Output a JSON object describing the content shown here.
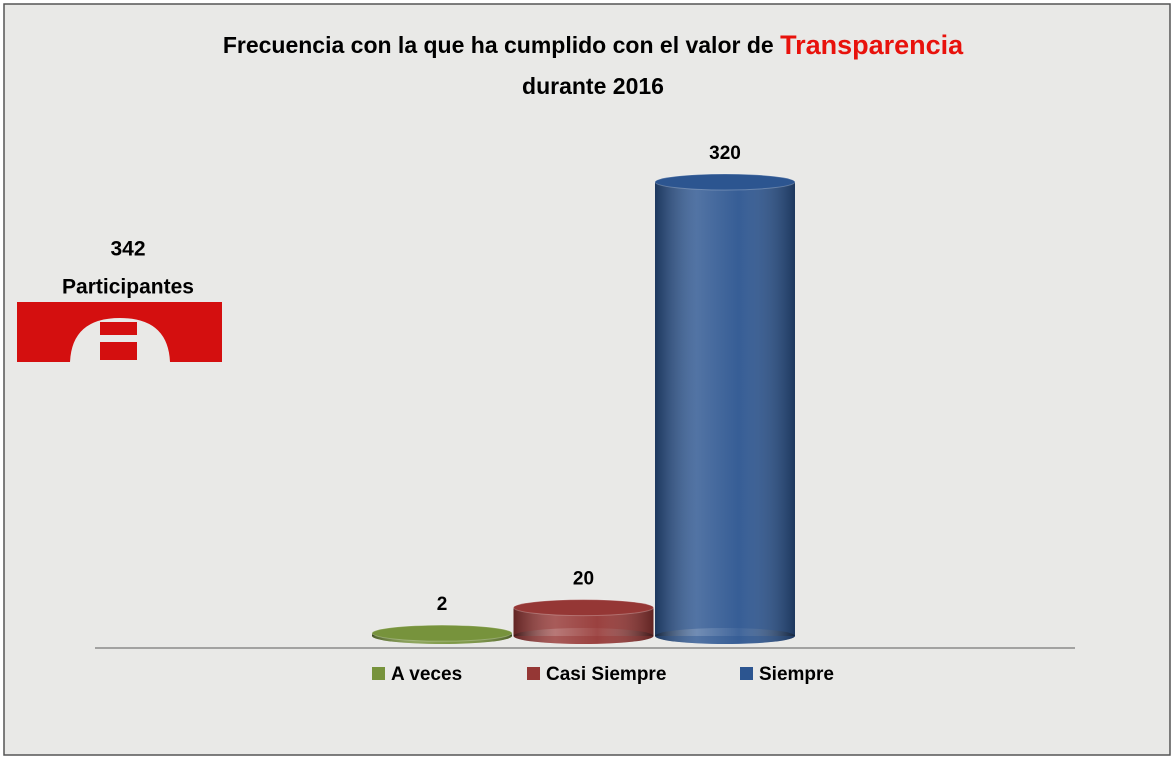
{
  "chart_data": {
    "type": "bar",
    "title": "Frecuencia con la que ha cumplido con el valor de",
    "title_highlight": "Transparencia",
    "subtitle": "durante 2016",
    "annotations": [
      "342",
      "Participantes"
    ],
    "categories": [
      null
    ],
    "series": [
      {
        "name": "A veces",
        "color": "#77933c",
        "values": [
          2
        ]
      },
      {
        "name": "Casi Siempre",
        "color": "#953735",
        "values": [
          20
        ]
      },
      {
        "name": "Siempre",
        "color": "#2c5590",
        "values": [
          320
        ]
      }
    ],
    "legend": "bottom"
  }
}
